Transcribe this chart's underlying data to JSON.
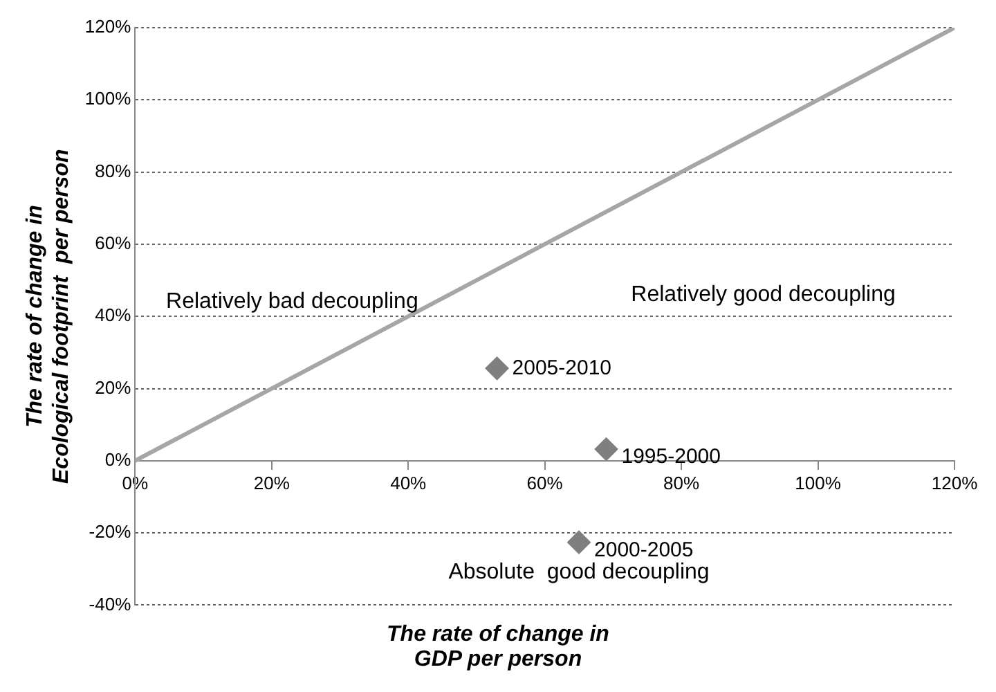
{
  "chart_data": {
    "type": "scatter",
    "xlabel": "The rate of change in\nGDP per person",
    "ylabel": "The rate of change in\nEcological footprint  per person",
    "xlim": [
      0,
      120
    ],
    "ylim": [
      -40,
      120
    ],
    "xticks": [
      {
        "value": 0,
        "label": "0%"
      },
      {
        "value": 20,
        "label": "20%"
      },
      {
        "value": 40,
        "label": "40%"
      },
      {
        "value": 60,
        "label": "60%"
      },
      {
        "value": 80,
        "label": "80%"
      },
      {
        "value": 100,
        "label": "100%"
      },
      {
        "value": 120,
        "label": "120%"
      }
    ],
    "yticks": [
      {
        "value": -40,
        "label": "-40%"
      },
      {
        "value": -20,
        "label": "-20%"
      },
      {
        "value": 0,
        "label": "0%"
      },
      {
        "value": 20,
        "label": "20%"
      },
      {
        "value": 40,
        "label": "40%"
      },
      {
        "value": 60,
        "label": "60%"
      },
      {
        "value": 80,
        "label": "80%"
      },
      {
        "value": 100,
        "label": "100%"
      },
      {
        "value": 120,
        "label": "120%"
      }
    ],
    "series": [
      {
        "type": "line",
        "color": "#a6a6a6",
        "x": [
          0,
          120
        ],
        "values": [
          0,
          120
        ],
        "marker": "none"
      },
      {
        "type": "scatter",
        "color": "#7f7f7f",
        "x": [
          53,
          69,
          65
        ],
        "values": [
          25.6,
          3.2,
          -22.6
        ],
        "marker": "diamond",
        "value_labels": [
          "2005-2010",
          "1995-2000",
          "2000-2005"
        ]
      }
    ],
    "annotations": [
      "Relatively bad decoupling",
      "Relatively good decoupling",
      "Absolute  good decoupling"
    ],
    "grid": "y",
    "legend": false
  }
}
